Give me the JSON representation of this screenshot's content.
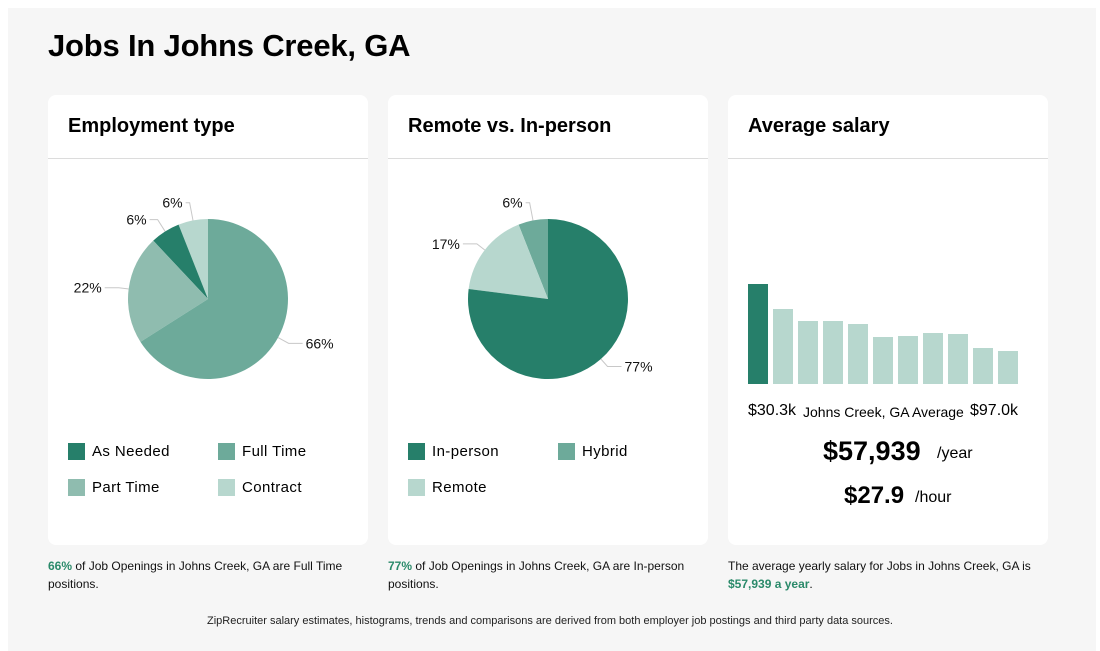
{
  "page": {
    "title": "Jobs In Johns Creek, GA",
    "footer": "ZipRecruiter salary estimates, histograms, trends and comparisons are derived from both employer job postings and third party data sources."
  },
  "employment": {
    "title": "Employment type",
    "caption_highlight": "66%",
    "caption_rest": " of Job Openings in Johns Creek, GA are Full Time positions."
  },
  "remote": {
    "title": "Remote vs. In-person",
    "caption_highlight": "77%",
    "caption_rest": " of Job Openings in Johns Creek, GA are In-person positions."
  },
  "salary": {
    "title": "Average salary",
    "min_label": "$30.3k",
    "mid_label": "Johns Creek, GA Average",
    "max_label": "$97.0k",
    "yearly": "$57,939",
    "yearly_unit": "/year",
    "hourly": "$27.9",
    "hourly_unit": "/hour",
    "caption_text": "The average yearly salary for Jobs in Johns Creek, GA is",
    "caption_highlight": "$57,939 a year",
    "caption_end": "."
  },
  "colors": {
    "dark_green": "#267f6a",
    "mid_green": "#6daa9a",
    "soft_green": "#8fbcaf",
    "light_green": "#b7d7ce",
    "highlight_text": "#2a8a6a"
  },
  "chart_data": [
    {
      "type": "pie",
      "title": "Employment type",
      "slices": [
        {
          "name": "Full Time",
          "value": 66,
          "label": "66%",
          "color": "#6daa9a"
        },
        {
          "name": "Part Time",
          "value": 22,
          "label": "22%",
          "color": "#8fbcaf"
        },
        {
          "name": "As Needed",
          "value": 6,
          "label": "6%",
          "color": "#267f6a"
        },
        {
          "name": "Contract",
          "value": 6,
          "label": "6%",
          "color": "#b7d7ce"
        }
      ],
      "legend": [
        "As Needed",
        "Full Time",
        "Part Time",
        "Contract"
      ]
    },
    {
      "type": "pie",
      "title": "Remote vs. In-person",
      "slices": [
        {
          "name": "In-person",
          "value": 77,
          "label": "77%",
          "color": "#267f6a"
        },
        {
          "name": "Remote",
          "value": 17,
          "label": "17%",
          "color": "#b7d7ce"
        },
        {
          "name": "Hybrid",
          "value": 6,
          "label": "6%",
          "color": "#6daa9a"
        }
      ],
      "legend": [
        "In-person",
        "Hybrid",
        "Remote"
      ]
    },
    {
      "type": "bar",
      "title": "Average salary",
      "xlabel": "",
      "ylabel": "",
      "x_range_labels": [
        "$30.3k",
        "$97.0k"
      ],
      "values": [
        100,
        75,
        63,
        63,
        60,
        47,
        48,
        51,
        50,
        36,
        33
      ],
      "highlight_index": 0,
      "ylim": [
        0,
        100
      ]
    }
  ]
}
